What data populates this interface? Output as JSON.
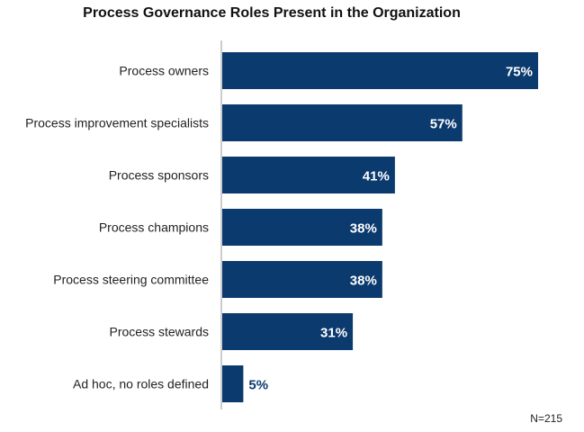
{
  "chart_data": {
    "type": "bar",
    "orientation": "horizontal",
    "title": "Process Governance Roles Present in the Organization",
    "categories": [
      "Process owners",
      "Process improvement specialists",
      "Process sponsors",
      "Process champions",
      "Process steering committee",
      "Process stewards",
      "Ad hoc, no roles defined"
    ],
    "values": [
      75,
      57,
      41,
      38,
      38,
      31,
      5
    ],
    "value_labels": [
      "75%",
      "57%",
      "41%",
      "38%",
      "38%",
      "31%",
      "5%"
    ],
    "xlim": [
      0,
      75
    ],
    "grid": false,
    "bar_color": "#0b3a6e",
    "note": "N=215"
  }
}
